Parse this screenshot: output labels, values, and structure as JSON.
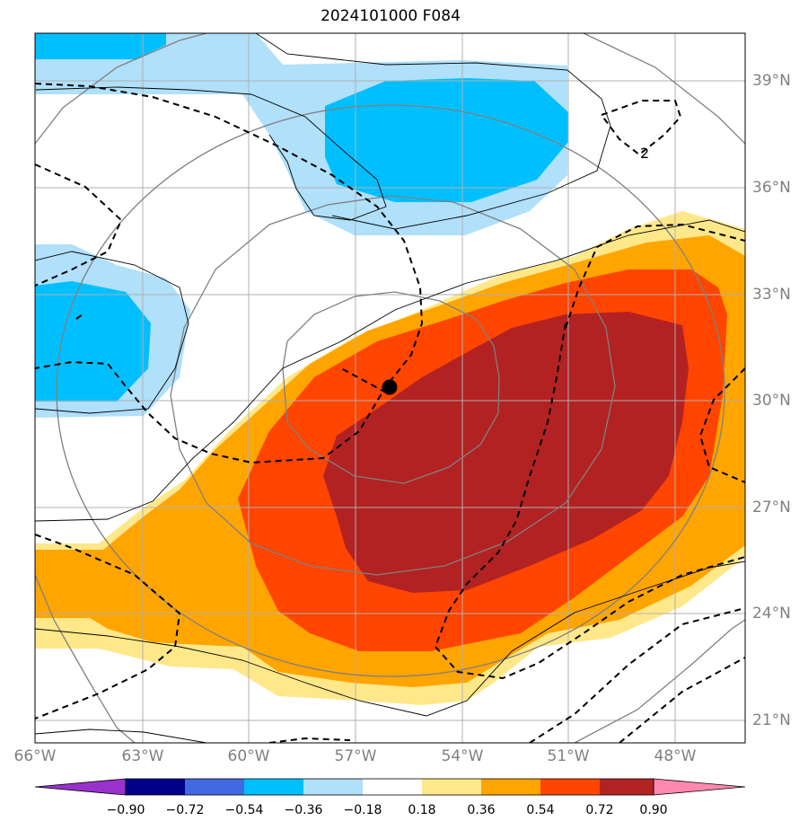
{
  "title": "2024101000 F084",
  "lon_labels": [
    "66°W",
    "63°W",
    "60°W",
    "57°W",
    "54°W",
    "51°W",
    "48°W"
  ],
  "lat_labels": [
    "39°N",
    "36°N",
    "33°N",
    "30°N",
    "27°N",
    "24°N",
    "21°N"
  ],
  "colorbar": {
    "tick_labels": [
      "−0.90",
      "−0.72",
      "−0.54",
      "−0.36",
      "−0.18",
      "0.18",
      "0.36",
      "0.54",
      "0.72",
      "0.90"
    ],
    "colors": [
      "#9932cc",
      "#00008b",
      "#4169e1",
      "#00bfff",
      "#b0e0fa",
      "#ffffff",
      "#ffe88a",
      "#ffa500",
      "#ff4500",
      "#b22222",
      "#ff88b0"
    ]
  },
  "contour_label": "2",
  "storm_marker": {
    "lon": -56.0,
    "lat": 30.3
  },
  "palette": {
    "very_light_blue": "#b0e0fa",
    "deep_sky_blue": "#00bfff",
    "light_yellow": "#ffe88a",
    "orange": "#ffa500",
    "orange_red": "#ff4500",
    "firebrick": "#b22222"
  }
}
